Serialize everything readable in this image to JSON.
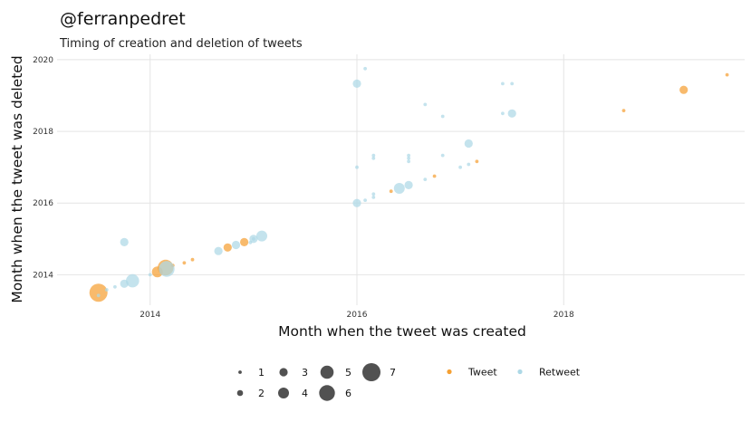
{
  "chart_data": {
    "type": "scatter",
    "title": "@ferranpedret",
    "subtitle": "Timing of creation and deletion of tweets",
    "xlabel": "Month when the tweet was created",
    "ylabel": "Month when the tweet was deleted",
    "xlim": [
      2013.1,
      2019.75
    ],
    "ylim": [
      2013.15,
      2020.15
    ],
    "xticks": [
      2014,
      2016,
      2018
    ],
    "yticks": [
      2014,
      2016,
      2018,
      2020
    ],
    "grid": true,
    "colors": {
      "Tweet": "#f5a033",
      "Retweet": "#add8e6"
    },
    "size_legend": {
      "values": [
        1,
        2,
        3,
        4,
        5,
        6,
        7
      ],
      "labels": [
        "1",
        "2",
        "3",
        "4",
        "5",
        "6",
        "7"
      ]
    },
    "color_legend": {
      "labels": [
        "Tweet",
        "Retweet"
      ]
    },
    "legend_position": "bottom",
    "series": [
      {
        "name": "Tweet",
        "points": [
          {
            "x": 2013.5,
            "y": 2013.5,
            "size": 7
          },
          {
            "x": 2014.07,
            "y": 2014.08,
            "size": 4
          },
          {
            "x": 2014.15,
            "y": 2014.2,
            "size": 6
          },
          {
            "x": 2014.22,
            "y": 2014.26,
            "size": 1
          },
          {
            "x": 2014.33,
            "y": 2014.33,
            "size": 1
          },
          {
            "x": 2014.41,
            "y": 2014.42,
            "size": 1
          },
          {
            "x": 2014.75,
            "y": 2014.76,
            "size": 3
          },
          {
            "x": 2014.91,
            "y": 2014.91,
            "size": 3
          },
          {
            "x": 2016.33,
            "y": 2016.33,
            "size": 1
          },
          {
            "x": 2016.75,
            "y": 2016.75,
            "size": 1
          },
          {
            "x": 2017.16,
            "y": 2017.16,
            "size": 1
          },
          {
            "x": 2018.58,
            "y": 2018.58,
            "size": 1
          },
          {
            "x": 2019.16,
            "y": 2019.16,
            "size": 3
          },
          {
            "x": 2019.58,
            "y": 2019.58,
            "size": 1
          }
        ]
      },
      {
        "name": "Retweet",
        "points": [
          {
            "x": 2013.5,
            "y": 2013.42,
            "size": 1
          },
          {
            "x": 2013.58,
            "y": 2013.58,
            "size": 1
          },
          {
            "x": 2013.66,
            "y": 2013.66,
            "size": 1
          },
          {
            "x": 2013.75,
            "y": 2013.75,
            "size": 3
          },
          {
            "x": 2013.83,
            "y": 2013.83,
            "size": 5
          },
          {
            "x": 2013.75,
            "y": 2014.91,
            "size": 3
          },
          {
            "x": 2014.0,
            "y": 2014.0,
            "size": 1
          },
          {
            "x": 2014.16,
            "y": 2014.16,
            "size": 6
          },
          {
            "x": 2014.66,
            "y": 2014.66,
            "size": 3
          },
          {
            "x": 2014.83,
            "y": 2014.83,
            "size": 3
          },
          {
            "x": 2015.0,
            "y": 2015.0,
            "size": 3
          },
          {
            "x": 2015.08,
            "y": 2015.08,
            "size": 4
          },
          {
            "x": 2014.97,
            "y": 2014.9,
            "size": 1
          },
          {
            "x": 2015.0,
            "y": 2015.0,
            "size": 1
          },
          {
            "x": 2016.0,
            "y": 2016.0,
            "size": 3
          },
          {
            "x": 2016.0,
            "y": 2017.0,
            "size": 1
          },
          {
            "x": 2016.0,
            "y": 2019.33,
            "size": 3
          },
          {
            "x": 2016.08,
            "y": 2019.75,
            "size": 1
          },
          {
            "x": 2016.08,
            "y": 2016.08,
            "size": 1
          },
          {
            "x": 2016.16,
            "y": 2016.16,
            "size": 1
          },
          {
            "x": 2016.16,
            "y": 2016.25,
            "size": 1
          },
          {
            "x": 2016.16,
            "y": 2017.25,
            "size": 1
          },
          {
            "x": 2016.16,
            "y": 2017.33,
            "size": 1
          },
          {
            "x": 2016.41,
            "y": 2016.41,
            "size": 4
          },
          {
            "x": 2016.5,
            "y": 2016.5,
            "size": 3
          },
          {
            "x": 2016.5,
            "y": 2017.16,
            "size": 1
          },
          {
            "x": 2016.5,
            "y": 2017.25,
            "size": 1
          },
          {
            "x": 2016.5,
            "y": 2017.33,
            "size": 1
          },
          {
            "x": 2016.66,
            "y": 2016.66,
            "size": 1
          },
          {
            "x": 2016.66,
            "y": 2018.75,
            "size": 1
          },
          {
            "x": 2016.83,
            "y": 2017.33,
            "size": 1
          },
          {
            "x": 2016.83,
            "y": 2018.42,
            "size": 1
          },
          {
            "x": 2017.0,
            "y": 2017.0,
            "size": 1
          },
          {
            "x": 2017.08,
            "y": 2017.08,
            "size": 1
          },
          {
            "x": 2017.08,
            "y": 2017.66,
            "size": 3
          },
          {
            "x": 2017.41,
            "y": 2018.5,
            "size": 1
          },
          {
            "x": 2017.41,
            "y": 2019.33,
            "size": 1
          },
          {
            "x": 2017.5,
            "y": 2018.5,
            "size": 3
          },
          {
            "x": 2017.5,
            "y": 2019.33,
            "size": 1
          }
        ]
      }
    ]
  }
}
